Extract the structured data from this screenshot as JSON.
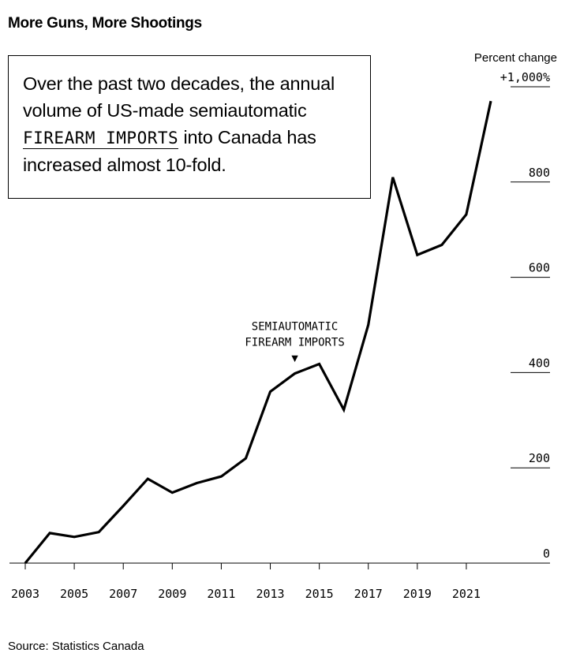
{
  "header": {
    "title": "More Guns, More Shootings"
  },
  "callout": {
    "text_before": "Over the past two decades, the annual volume of US-made semiautomatic ",
    "highlight": "FIREARM IMPORTS",
    "text_after": " into Canada has increased almost 10-fold."
  },
  "footer": {
    "source": "Source: Statistics Canada"
  },
  "chart_data": {
    "type": "line",
    "title": "More Guns, More Shootings",
    "ylabel": "Percent change",
    "xlabel": "",
    "x": [
      2003,
      2004,
      2005,
      2006,
      2007,
      2008,
      2009,
      2010,
      2011,
      2012,
      2013,
      2014,
      2015,
      2016,
      2017,
      2018,
      2019,
      2020,
      2021,
      2022
    ],
    "series": [
      {
        "name": "Semiautomatic firearm imports",
        "values": [
          0,
          63,
          55,
          65,
          120,
          177,
          148,
          168,
          182,
          220,
          360,
          398,
          418,
          322,
          500,
          810,
          647,
          668,
          732,
          970
        ]
      }
    ],
    "xlim": [
      2003,
      2022
    ],
    "ylim": [
      0,
      1000
    ],
    "x_ticks": [
      2003,
      2005,
      2007,
      2009,
      2011,
      2013,
      2015,
      2017,
      2019,
      2021
    ],
    "x_tick_labels": [
      "2003",
      "2005",
      "2007",
      "2009",
      "2011",
      "2013",
      "2015",
      "2017",
      "2019",
      "2021"
    ],
    "y_ticks": [
      0,
      200,
      400,
      600,
      800,
      1000
    ],
    "y_tick_labels": [
      "0",
      "200",
      "400",
      "600",
      "800",
      "+1,000%"
    ],
    "grid": false,
    "annotation": {
      "year": 2014,
      "value": 398,
      "lines": [
        "SEMIAUTOMATIC",
        "FIREARM IMPORTS"
      ],
      "marker": "▼"
    },
    "colors": {
      "line": "#000000",
      "axis": "#000000"
    }
  }
}
